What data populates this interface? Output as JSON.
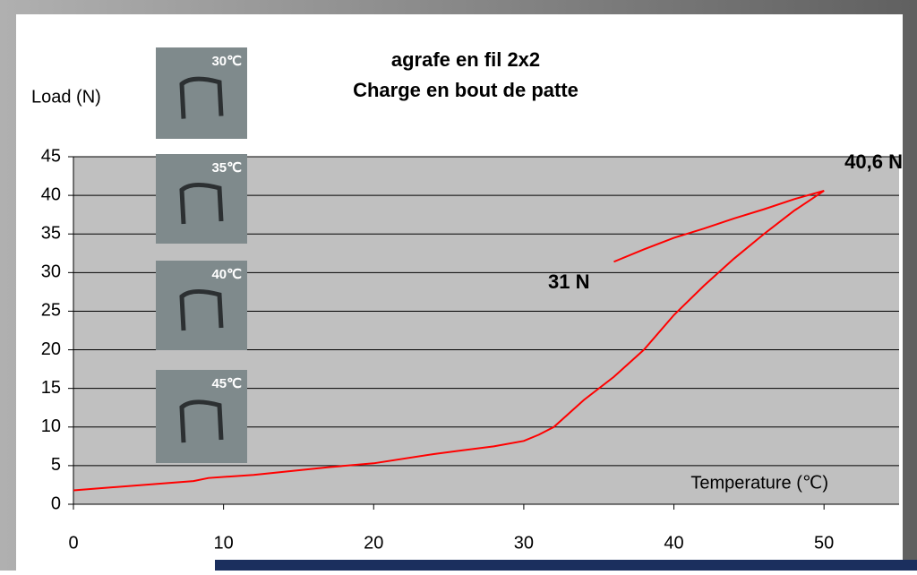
{
  "chart_data": {
    "type": "line",
    "title": "agrafe en fil 2x2",
    "subtitle": "Charge en bout de patte",
    "y_label": "Load (N)",
    "x_label": "Temperature (℃)",
    "x": [
      0,
      8,
      9,
      12,
      17,
      20,
      24,
      28,
      30,
      31,
      32,
      34,
      36,
      38,
      40,
      42,
      44,
      46,
      48,
      49,
      50,
      48,
      46,
      44,
      42,
      40,
      38,
      36
    ],
    "values": [
      1.8,
      3,
      3.4,
      3.8,
      4.8,
      5.3,
      6.5,
      7.5,
      8.2,
      9,
      10,
      13.5,
      16.5,
      20,
      24.5,
      28.3,
      31.8,
      35,
      38,
      39.3,
      40.6,
      39.5,
      38.2,
      37,
      35.7,
      34.5,
      33,
      31.4
    ],
    "color": "#ff0000",
    "xlim": [
      0,
      55
    ],
    "xticks": [
      0,
      10,
      20,
      30,
      40,
      50
    ],
    "ylim": [
      0,
      45
    ],
    "yticks": [
      0,
      5,
      10,
      15,
      20,
      25,
      30,
      35,
      40,
      45
    ],
    "grid": true,
    "annotations": [
      "40,6 N",
      "31 N"
    ],
    "photos": [
      "30℃",
      "35℃",
      "40℃",
      "45℃"
    ]
  }
}
